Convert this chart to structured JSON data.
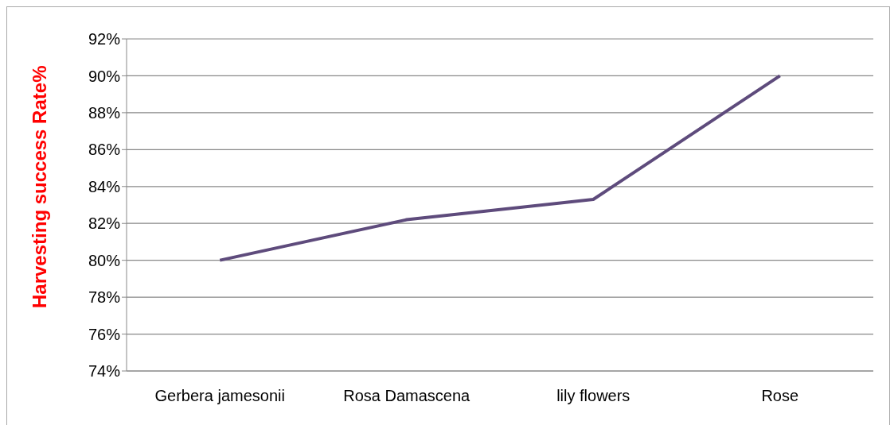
{
  "chart_data": {
    "type": "line",
    "ylabel": "Harvesting success Rate%",
    "categories": [
      "Gerbera jamesonii",
      "Rosa Damascena",
      "lily flowers",
      "Rose"
    ],
    "series": [
      {
        "color": "#5e4b7c",
        "values": [
          80,
          82.2,
          83.3,
          90
        ]
      }
    ],
    "ylim": [
      74,
      92
    ],
    "yticks": [
      {
        "value": 74,
        "label": "74%"
      },
      {
        "value": 76,
        "label": "76%"
      },
      {
        "value": 78,
        "label": "78%"
      },
      {
        "value": 80,
        "label": "80%"
      },
      {
        "value": 82,
        "label": "82%"
      },
      {
        "value": 84,
        "label": "84%"
      },
      {
        "value": 86,
        "label": "86%"
      },
      {
        "value": 88,
        "label": "88%"
      },
      {
        "value": 90,
        "label": "90%"
      },
      {
        "value": 92,
        "label": "92%"
      }
    ],
    "grid": "y",
    "marker": "none",
    "line_style": "solid"
  }
}
